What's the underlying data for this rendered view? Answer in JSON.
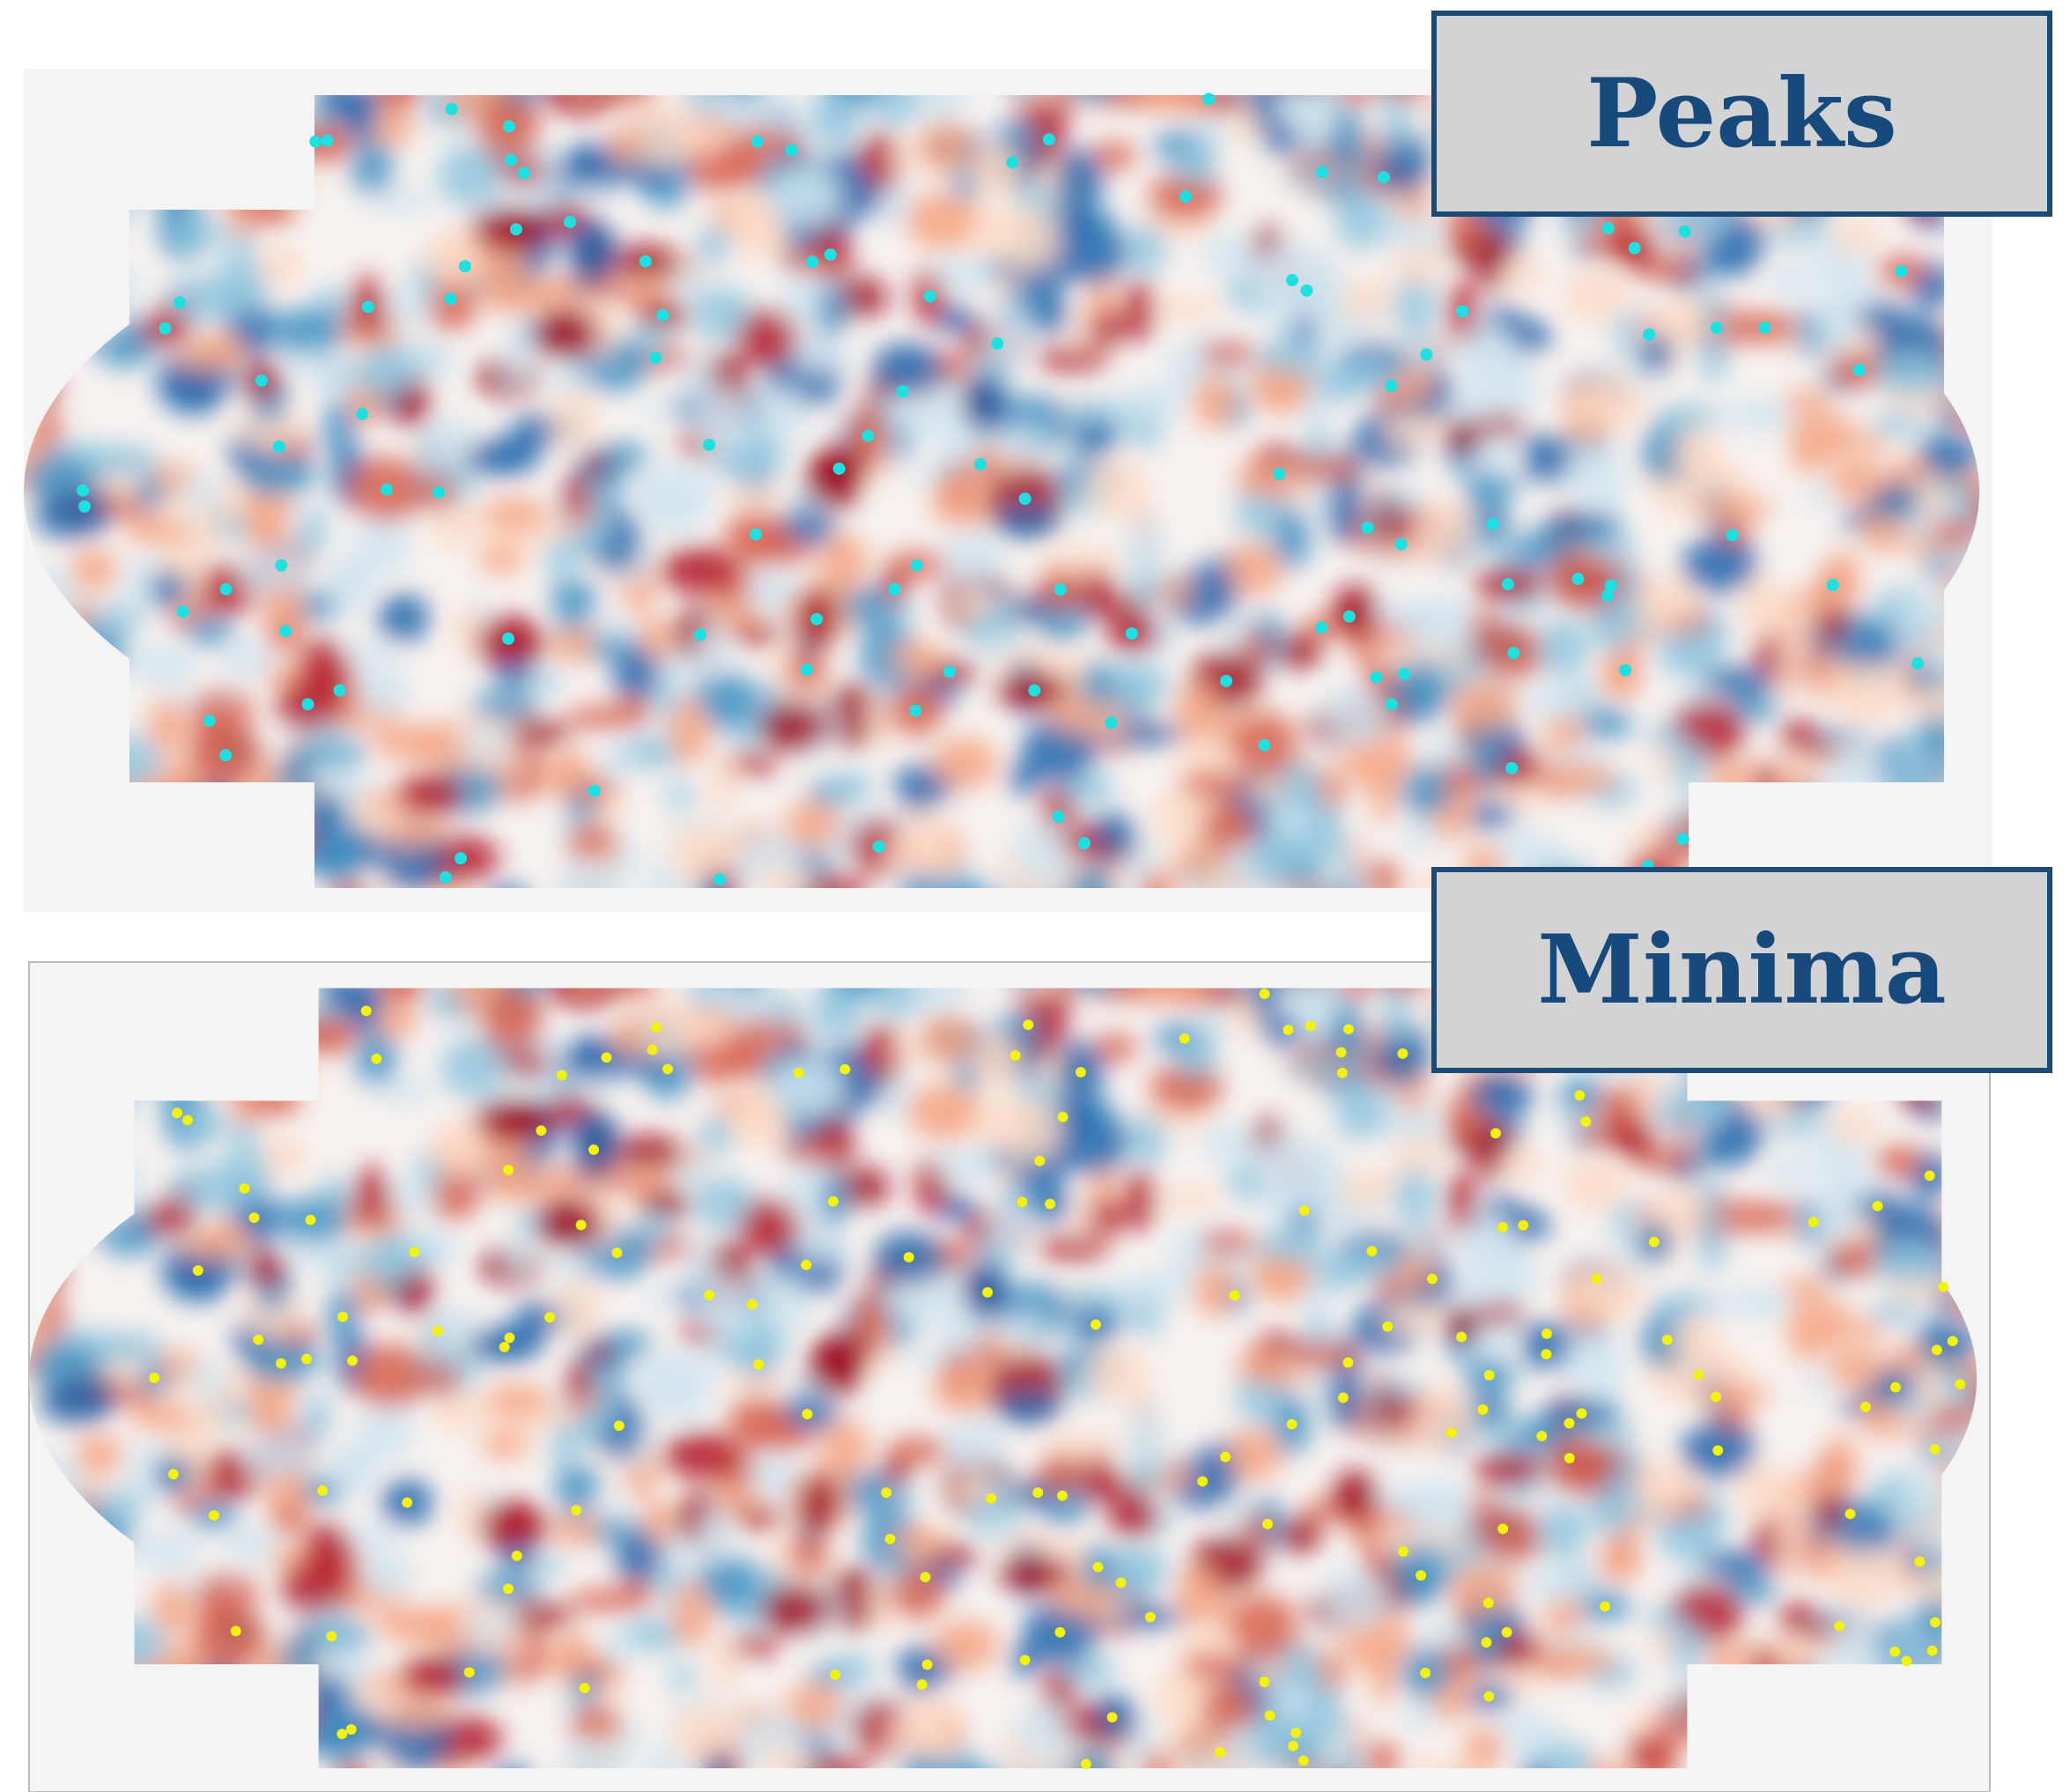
{
  "panels": [
    {
      "label": "Peaks"
    },
    {
      "label": "Minima"
    }
  ]
}
